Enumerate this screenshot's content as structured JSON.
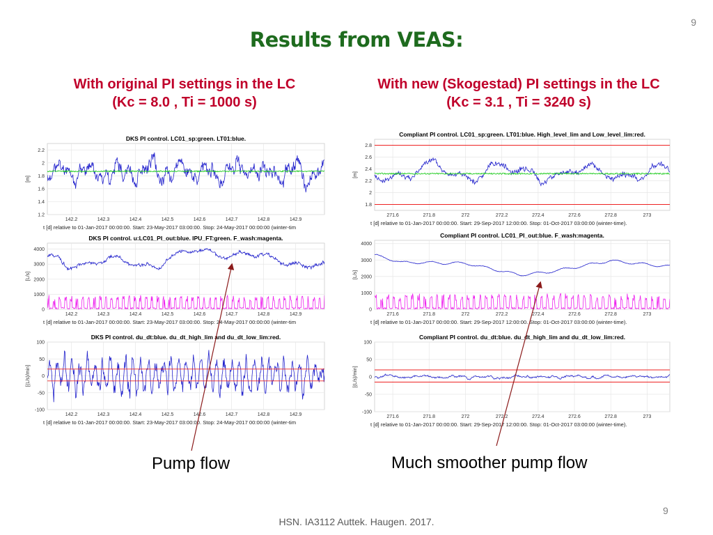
{
  "slide": {
    "number_top": "9",
    "number_bottom": "9",
    "title": "Results from VEAS:",
    "left_heading_line1": "With original PI settings in the LC",
    "left_heading_line2": "(Kc = 8.0 , Ti = 1000 s)",
    "right_heading_line1": "With new (Skogestad) PI settings in the LC",
    "right_heading_line2": "(Kc = 3.1 , Ti = 3240 s)",
    "annotation_left": "Pump flow",
    "annotation_right": "Much smoother pump flow",
    "footer": "HSN. IA3112 Auttek. Haugen. 2017."
  },
  "colors": {
    "title": "#1e6b1e",
    "heading": "#c0002a",
    "blue": "#2222cc",
    "green": "#22cc22",
    "magenta": "#ee22ee",
    "red": "#ee2222",
    "arrow": "#8b1a1a"
  },
  "chart_data": [
    {
      "id": "left-level",
      "type": "line",
      "title": "DKS PI control. LC01_sp:green. LT01:blue.",
      "ylabel": "[m]",
      "xlabel": "t [d] relative to 01-Jan-2017 00:00:00. Start: 23-May-2017 03:00:00. Stop: 24-May-2017 00:00:00 (winter-tim",
      "xlim": [
        142.125,
        142.99
      ],
      "ylim": [
        1.2,
        2.3
      ],
      "xticks": [
        "142.2",
        "142.3",
        "142.4",
        "142.5",
        "142.6",
        "142.7",
        "142.8",
        "142.9"
      ],
      "yticks": [
        "1.2",
        "1.4",
        "1.6",
        "1.8",
        "2",
        "2.2"
      ],
      "series": [
        {
          "color": "blue",
          "kind": "noise",
          "base": 1.87,
          "amp": 0.22,
          "seed": 11,
          "period": 0.02
        },
        {
          "color": "green",
          "kind": "flat",
          "base": 1.87,
          "amp": 0.01,
          "seed": 12
        }
      ]
    },
    {
      "id": "left-flow",
      "type": "line",
      "title": "DKS PI control. u:LC01_PI_out:blue. IPU_FT:green. F_wash:magenta.",
      "ylabel": "[L/s]",
      "xlabel": "t [d] relative to 01-Jan-2017 00:00:00. Start: 23-May-2017 03:00:00. Stop: 24-May-2017 00:00:00 (winter-tim",
      "xlim": [
        142.125,
        142.99
      ],
      "ylim": [
        0,
        4400
      ],
      "xticks": [
        "142.2",
        "142.3",
        "142.4",
        "142.5",
        "142.6",
        "142.7",
        "142.8",
        "142.9"
      ],
      "yticks": [
        "0",
        "1000",
        "2000",
        "3000",
        "4000"
      ],
      "series": [
        {
          "color": "blue",
          "kind": "wave",
          "base": 3100,
          "amp": 450,
          "seed": 21,
          "trend": [
            [
              142.125,
              3300
            ],
            [
              142.45,
              3050
            ],
            [
              142.65,
              3950
            ],
            [
              142.99,
              2800
            ]
          ]
        },
        {
          "color": "magenta",
          "kind": "pulse",
          "base": 200,
          "amp": 650,
          "seed": 22
        }
      ]
    },
    {
      "id": "left-rate",
      "type": "line",
      "title": "DKS PI control. du_dt:blue. du_dt_high_lim and du_dt_low_lim:red.",
      "ylabel": "[(L/s)/min]",
      "xlabel": "t [d] relative to 01-Jan-2017 00:00:00. Start: 23-May-2017 03:00:00. Stop: 24-May-2017 00:00:00 (winter-tim",
      "xlim": [
        142.125,
        142.99
      ],
      "ylim": [
        -100,
        100
      ],
      "xticks": [
        "142.2",
        "142.3",
        "142.4",
        "142.5",
        "142.6",
        "142.7",
        "142.8",
        "142.9"
      ],
      "yticks": [
        "-100",
        "-50",
        "0",
        "50",
        "100"
      ],
      "series": [
        {
          "color": "blue",
          "kind": "spiky",
          "base": 0,
          "amp": 75,
          "seed": 31
        },
        {
          "color": "red",
          "kind": "flat",
          "base": 20,
          "amp": 0,
          "seed": 32
        },
        {
          "color": "red",
          "kind": "flat",
          "base": -15,
          "amp": 0,
          "seed": 33
        }
      ]
    },
    {
      "id": "right-level",
      "type": "line",
      "title": "Compliant PI control. LC01_sp:green. LT01:blue. High_level_lim and Low_level_lim:red.",
      "ylabel": "[m]",
      "xlabel": "t [d] relative to 01-Jan-2017 00:00:00. Start: 29-Sep-2017 12:00:00. Stop: 01-Oct-2017 03:00:00 (winter-time).",
      "xlim": [
        271.5,
        273.125
      ],
      "ylim": [
        1.7,
        2.9
      ],
      "xticks": [
        "271.6",
        "271.8",
        "272",
        "272.2",
        "272.4",
        "272.6",
        "272.8",
        "273"
      ],
      "yticks": [
        "1.8",
        "2",
        "2.2",
        "2.4",
        "2.6",
        "2.8"
      ],
      "series": [
        {
          "color": "blue",
          "kind": "wave",
          "base": 2.33,
          "amp": 0.18,
          "seed": 41
        },
        {
          "color": "green",
          "kind": "flat",
          "base": 2.32,
          "amp": 0.012,
          "seed": 42
        },
        {
          "color": "red",
          "kind": "flat",
          "base": 2.8,
          "amp": 0,
          "seed": 43
        },
        {
          "color": "red",
          "kind": "flat",
          "base": 1.8,
          "amp": 0,
          "seed": 44
        }
      ]
    },
    {
      "id": "right-flow",
      "type": "line",
      "title": "Compliant PI control. LC01_PI_out:blue. F_wash:magenta.",
      "ylabel": "[L/s]",
      "xlabel": "t [d] relative to 01-Jan-2017 00:00:00. Start: 29-Sep-2017 12:00:00. Stop: 01-Oct-2017 03:00:00 (winter-time).",
      "xlim": [
        271.5,
        273.125
      ],
      "ylim": [
        0,
        4200
      ],
      "xticks": [
        "271.6",
        "271.8",
        "272",
        "272.2",
        "272.4",
        "272.6",
        "272.8",
        "273"
      ],
      "yticks": [
        "0",
        "1000",
        "2000",
        "3000",
        "4000"
      ],
      "series": [
        {
          "color": "blue",
          "kind": "smooth",
          "base": 2700,
          "amp": 70,
          "seed": 51,
          "trend": [
            [
              271.5,
              3300
            ],
            [
              271.65,
              2850
            ],
            [
              272.0,
              2800
            ],
            [
              272.3,
              2100
            ],
            [
              272.45,
              2250
            ],
            [
              272.8,
              2950
            ],
            [
              273.125,
              2600
            ]
          ]
        },
        {
          "color": "magenta",
          "kind": "pulse",
          "base": 200,
          "amp": 650,
          "seed": 52
        }
      ]
    },
    {
      "id": "right-rate",
      "type": "line",
      "title": "Compliant PI control. du_dt:blue. du_dt_high_lim and du_dt_low_lim:red.",
      "ylabel": "[(L/s)/min]",
      "xlabel": "t [d] relative to 01-Jan-2017 00:00:00. Start: 29-Sep-2017 12:00:00. Stop: 01-Oct-2017 03:00:00 (winter-time).",
      "xlim": [
        271.5,
        273.125
      ],
      "ylim": [
        -100,
        100
      ],
      "xticks": [
        "271.6",
        "271.8",
        "272",
        "272.2",
        "272.4",
        "272.6",
        "272.8",
        "273"
      ],
      "yticks": [
        "-100",
        "-50",
        "0",
        "50",
        "100"
      ],
      "series": [
        {
          "color": "blue",
          "kind": "noise",
          "base": 0,
          "amp": 6,
          "seed": 61,
          "period": 0.012
        },
        {
          "color": "red",
          "kind": "flat",
          "base": 20,
          "amp": 0,
          "seed": 62
        },
        {
          "color": "red",
          "kind": "flat",
          "base": -15,
          "amp": 0,
          "seed": 63
        }
      ]
    }
  ]
}
